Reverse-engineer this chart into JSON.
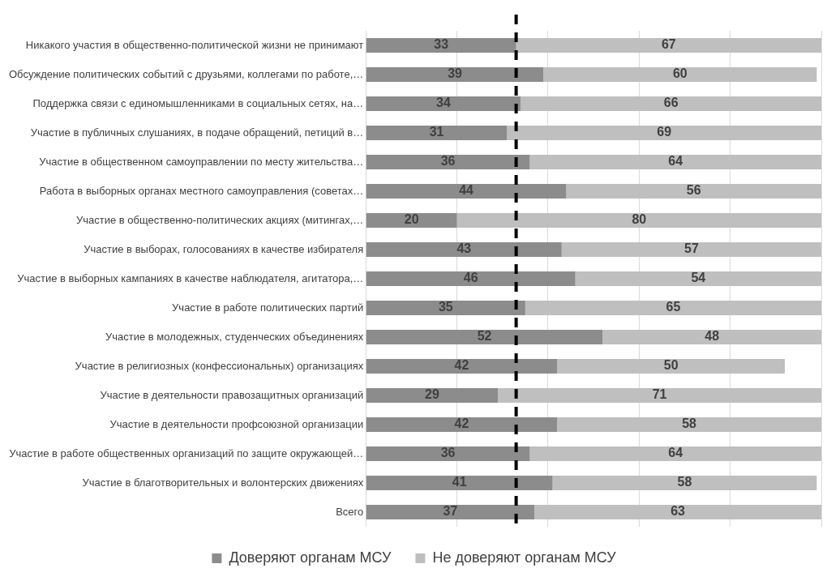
{
  "chart_data": {
    "type": "bar",
    "orientation": "horizontal",
    "stacked": true,
    "categories": [
      "Никакого участия в общественно-политической жизни не принимают",
      "Обсуждение политических событий с друзьями, коллегами по работе,…",
      "Поддержка связи с единомышленниками в социальных сетях, на…",
      "Участие в публичных слушаниях, в подаче обращений, петиций в…",
      "Участие в общественном самоуправлении по месту жительства…",
      "Работа в выборных органах местного самоуправления (советах…",
      "Участие в общественно-политических акциях (митингах,…",
      "Участие в выборах, голосованиях в качестве избирателя",
      "Участие в выборных кампаниях в качестве наблюдателя, агитатора,…",
      "Участие в работе политических партий",
      "Участие в молодежных, студенческих объединениях",
      "Участие в религиозных (конфессиональных) организациях",
      "Участие в деятельности правозащитных организаций",
      "Участие в деятельности профсоюзной организации",
      "Участие в работе общественных организаций по защите окружающей…",
      "Участие в благотворительных и волонтерских движениях",
      "Всего"
    ],
    "series": [
      {
        "name": "Доверяют органам МСУ",
        "color": "#8c8c8c",
        "values": [
          33,
          39,
          34,
          31,
          36,
          44,
          20,
          43,
          46,
          35,
          52,
          42,
          29,
          42,
          36,
          41,
          37
        ]
      },
      {
        "name": "Не доверяют органам МСУ",
        "color": "#bfbfbf",
        "values": [
          67,
          60,
          66,
          69,
          64,
          56,
          80,
          57,
          54,
          65,
          48,
          50,
          71,
          58,
          64,
          58,
          63
        ]
      }
    ],
    "xlim": [
      0,
      100
    ],
    "xticks": [
      {
        "value": 0,
        "label": null
      },
      {
        "value": 20,
        "label": null
      },
      {
        "value": 40,
        "label": null
      },
      {
        "value": 60,
        "label": null
      },
      {
        "value": 80,
        "label": null
      },
      {
        "value": 100,
        "label": null
      }
    ],
    "tick_labels": "y",
    "grid": "x",
    "legend": "bottom",
    "data_labels": true,
    "ref_lines": [
      {
        "axis": "x",
        "value": 33,
        "color": "#000000",
        "line_style": "dashed"
      }
    ]
  }
}
